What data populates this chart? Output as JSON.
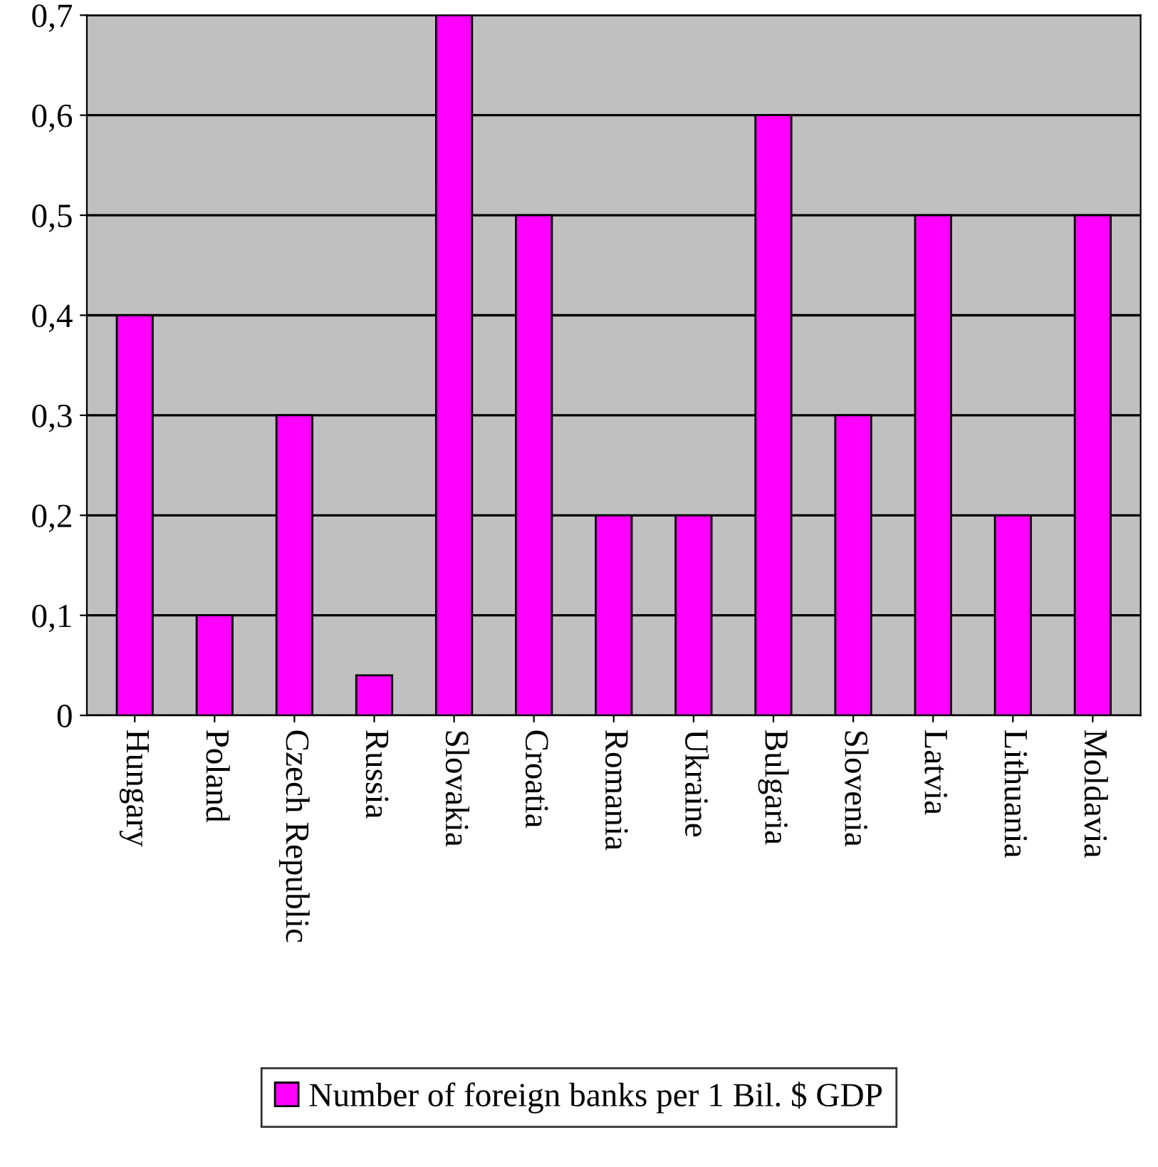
{
  "chart_data": {
    "type": "bar",
    "categories": [
      "Hungary",
      "Poland",
      "Czech Republic",
      "Russia",
      "Slovakia",
      "Croatia",
      "Romania",
      "Ukraine",
      "Bulgaria",
      "Slovenia",
      "Latvia",
      "Lithuania",
      "Moldavia"
    ],
    "series": [
      {
        "name": "Number of foreign banks per 1 Bil. $ GDP",
        "color": "#ff00ff",
        "values": [
          0.4,
          0.1,
          0.3,
          0.04,
          0.7,
          0.5,
          0.2,
          0.2,
          0.6,
          0.3,
          0.5,
          0.2,
          0.5
        ]
      }
    ],
    "ylim": [
      0,
      0.7
    ],
    "yticks": [
      0,
      {
        "value": 0.1,
        "label": "0,1"
      },
      {
        "value": 0.2,
        "label": "0,2"
      },
      {
        "value": 0.3,
        "label": "0,3"
      },
      {
        "value": 0.4,
        "label": "0,4"
      },
      {
        "value": 0.5,
        "label": "0,5"
      },
      {
        "value": 0.6,
        "label": "0,6"
      },
      {
        "value": 0.7,
        "label": "0,7"
      }
    ],
    "grid": "y",
    "legend": "bottom"
  }
}
